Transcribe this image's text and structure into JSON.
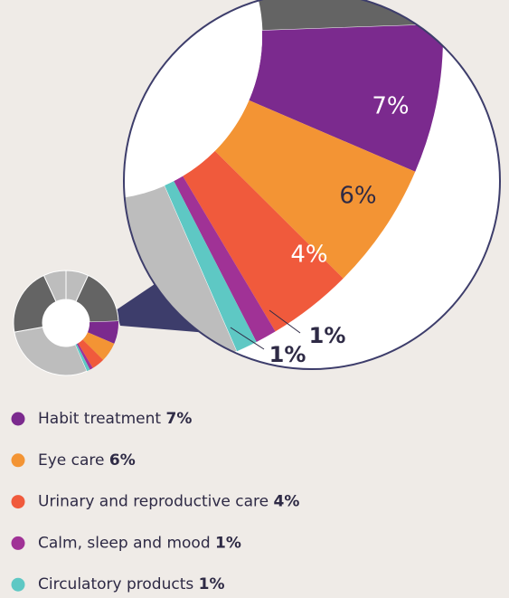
{
  "chart_data": {
    "type": "pie",
    "categories": [
      "Habit treatment",
      "Eye care",
      "Urinary and reproductive care",
      "Calm, sleep and mood",
      "Circulatory products"
    ],
    "values": [
      7,
      6,
      4,
      1,
      1
    ],
    "value_labels": [
      "7%",
      "6%",
      "4%",
      "1%",
      "1%"
    ],
    "colors": [
      "#7b2a8e",
      "#f39434",
      "#f05a3c",
      "#a03296",
      "#5ec8c4"
    ],
    "legend": "bottom"
  }
}
